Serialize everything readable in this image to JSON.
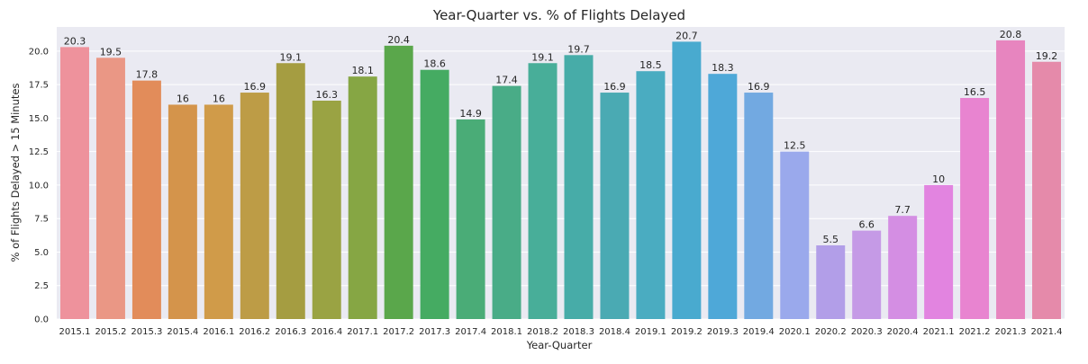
{
  "chart_data": {
    "type": "bar",
    "title": "Year-Quarter vs. % of Flights Delayed",
    "xlabel": "Year-Quarter",
    "ylabel": "% of Flights Delayed > 15 Minutes",
    "ylim": [
      0,
      21.8
    ],
    "yticks": [
      0.0,
      2.5,
      5.0,
      7.5,
      10.0,
      12.5,
      15.0,
      17.5,
      20.0
    ],
    "ytick_labels": [
      "0.0",
      "2.5",
      "5.0",
      "7.5",
      "10.0",
      "12.5",
      "15.0",
      "17.5",
      "20.0"
    ],
    "grid": true,
    "categories": [
      "2015.1",
      "2015.2",
      "2015.3",
      "2015.4",
      "2016.1",
      "2016.2",
      "2016.3",
      "2016.4",
      "2017.1",
      "2017.2",
      "2017.3",
      "2017.4",
      "2018.1",
      "2018.2",
      "2018.3",
      "2018.4",
      "2019.1",
      "2019.2",
      "2019.3",
      "2019.4",
      "2020.1",
      "2020.2",
      "2020.3",
      "2020.4",
      "2021.1",
      "2021.2",
      "2021.3",
      "2021.4"
    ],
    "values": [
      20.3,
      19.5,
      17.8,
      16,
      16,
      16.9,
      19.1,
      16.3,
      18.1,
      20.4,
      18.6,
      14.9,
      17.4,
      19.1,
      19.7,
      16.9,
      18.5,
      20.7,
      18.3,
      16.9,
      12.5,
      5.5,
      6.6,
      7.7,
      10,
      16.5,
      20.8,
      19.2
    ],
    "value_labels": [
      "20.3",
      "19.5",
      "17.8",
      "16",
      "16",
      "16.9",
      "19.1",
      "16.3",
      "18.1",
      "20.4",
      "18.6",
      "14.9",
      "17.4",
      "19.1",
      "19.7",
      "16.9",
      "18.5",
      "20.7",
      "18.3",
      "16.9",
      "12.5",
      "5.5",
      "6.6",
      "7.7",
      "10",
      "16.5",
      "20.8",
      "19.2"
    ],
    "colors": [
      "#ee929c",
      "#ea9785",
      "#e28c5a",
      "#d4944b",
      "#d09b49",
      "#bd9c46",
      "#a59d41",
      "#9aa343",
      "#86a644",
      "#5aa74b",
      "#45ab62",
      "#4aac77",
      "#49ac87",
      "#48ae99",
      "#47aca8",
      "#4aaab3",
      "#4aacc1",
      "#49aacf",
      "#4ea8d8",
      "#72a9e1",
      "#9aa9ec",
      "#b29ee8",
      "#c59ae6",
      "#d48ee3",
      "#e284e0",
      "#e884d0",
      "#e785bf",
      "#e58aaa"
    ],
    "plot_background": "#eaeaf2",
    "grid_color": "#ffffff"
  }
}
